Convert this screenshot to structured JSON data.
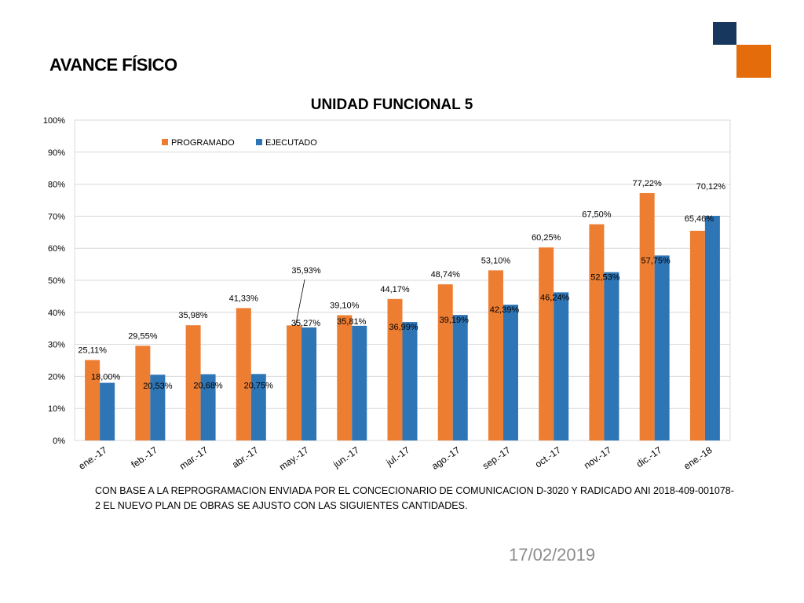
{
  "page": {
    "title": "AVANCE FÍSICO",
    "note": "CON BASE A LA REPROGRAMACION ENVIADA POR EL CONCECIONARIO DE COMUNICACION D-3020 Y RADICADO ANI  2018-409-001078-2 EL NUEVO PLAN  DE OBRAS SE AJUSTO CON LAS SIGUIENTES CANTIDADES.",
    "date": "17/02/2019"
  },
  "colors": {
    "programado": "#ed7d31",
    "ejecutado": "#2e75b6",
    "grid": "#d9d9d9",
    "deco_navy": "#17375e",
    "deco_orange": "#e46c0a"
  },
  "chart_data": {
    "type": "bar",
    "title": "UNIDAD FUNCIONAL 5",
    "xlabel": "",
    "ylabel": "",
    "ylim": [
      0,
      100
    ],
    "yticks": [
      "0%",
      "10%",
      "20%",
      "30%",
      "40%",
      "50%",
      "60%",
      "70%",
      "80%",
      "90%",
      "100%"
    ],
    "grid": true,
    "legend_position": "top-left",
    "categories": [
      "ene.-17",
      "feb.-17",
      "mar.-17",
      "abr.-17",
      "may.-17",
      "jun.-17",
      "jul.-17",
      "ago.-17",
      "sep.-17",
      "oct.-17",
      "nov.-17",
      "dic.-17",
      "ene.-18"
    ],
    "series": [
      {
        "name": "PROGRAMADO",
        "values": [
          25.11,
          29.55,
          35.98,
          41.33,
          35.93,
          39.1,
          44.17,
          48.74,
          53.1,
          60.25,
          67.5,
          77.22,
          65.46
        ],
        "labels": [
          "25,11%",
          "29,55%",
          "35,98%",
          "41,33%",
          "35,93%",
          "39,10%",
          "44,17%",
          "48,74%",
          "53,10%",
          "60,25%",
          "67,50%",
          "77,22%",
          "65,46%"
        ]
      },
      {
        "name": "EJECUTADO",
        "values": [
          18.0,
          20.53,
          20.68,
          20.75,
          35.27,
          35.81,
          36.99,
          39.19,
          42.39,
          46.24,
          52.53,
          57.75,
          70.12
        ],
        "labels": [
          "18,00%",
          "20,53%",
          "20,68%",
          "20,75%",
          "35,27%",
          "35,81%",
          "36,99%",
          "39,19%",
          "42,39%",
          "46,24%",
          "52,53%",
          "57,75%",
          "70,12%"
        ]
      }
    ]
  }
}
